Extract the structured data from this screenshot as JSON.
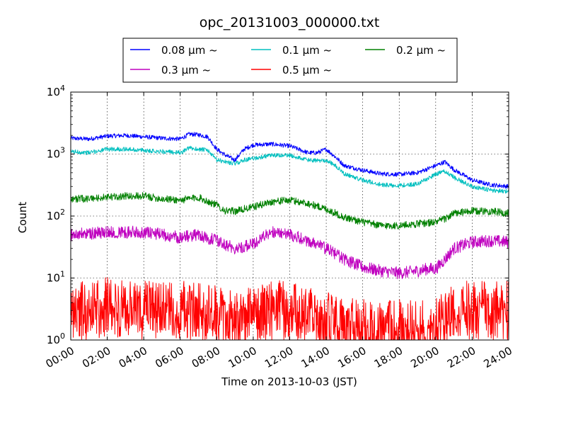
{
  "chart_data": {
    "type": "line",
    "title": "opc_20131003_000000.txt",
    "xlabel": "Time on 2013-10-03 (JST)",
    "ylabel": "Count",
    "x_ticks": [
      "00:00",
      "02:00",
      "04:00",
      "06:00",
      "08:00",
      "10:00",
      "12:00",
      "14:00",
      "16:00",
      "18:00",
      "20:00",
      "22:00",
      "24:00"
    ],
    "y_scale": "log",
    "ylim": [
      1,
      10000
    ],
    "xlim_hours": [
      0,
      24
    ],
    "y_tick_exponents": [
      "0",
      "1",
      "2",
      "3",
      "4"
    ],
    "y_tick_base": "10",
    "grid": true,
    "legend_position": "top-center",
    "series": [
      {
        "name": "0.08 μm ~",
        "color": "#0000ff",
        "x": [
          0,
          1,
          2,
          3,
          4,
          5,
          6,
          6.5,
          7,
          7.5,
          8,
          8.5,
          9,
          9.5,
          10,
          11,
          12,
          13,
          13.5,
          14,
          14.5,
          15,
          16,
          17,
          18,
          19,
          20,
          20.5,
          21,
          22,
          23,
          24
        ],
        "values": [
          1800,
          1750,
          1950,
          2000,
          1900,
          1800,
          1750,
          2100,
          2050,
          1900,
          1200,
          950,
          800,
          1200,
          1400,
          1450,
          1350,
          1050,
          1050,
          1200,
          900,
          650,
          550,
          480,
          470,
          500,
          650,
          750,
          560,
          380,
          320,
          300
        ]
      },
      {
        "name": "0.1 μm ~",
        "color": "#00bfbf",
        "x": [
          0,
          1,
          2,
          3,
          4,
          5,
          6,
          6.5,
          7,
          7.5,
          8,
          8.5,
          9,
          9.5,
          10,
          11,
          12,
          13,
          13.5,
          14,
          14.5,
          15,
          16,
          17,
          18,
          19,
          20,
          20.5,
          21,
          22,
          23,
          24
        ],
        "values": [
          1100,
          1050,
          1200,
          1200,
          1150,
          1100,
          1050,
          1250,
          1200,
          1150,
          800,
          750,
          700,
          800,
          850,
          950,
          950,
          800,
          780,
          800,
          650,
          480,
          380,
          320,
          310,
          330,
          470,
          530,
          420,
          300,
          260,
          250
        ]
      },
      {
        "name": "0.2 μm ~",
        "color": "#008000",
        "x": [
          0,
          1,
          2,
          3,
          4,
          5,
          6,
          7,
          8,
          8.5,
          9,
          10,
          11,
          12,
          13,
          14,
          15,
          16,
          17,
          18,
          19,
          20,
          20.5,
          21,
          22,
          23,
          24
        ],
        "values": [
          190,
          190,
          200,
          210,
          210,
          190,
          180,
          200,
          150,
          120,
          120,
          140,
          170,
          180,
          160,
          130,
          95,
          80,
          70,
          70,
          75,
          80,
          90,
          110,
          120,
          120,
          110
        ]
      },
      {
        "name": "0.3 μm ~",
        "color": "#bf00bf",
        "x": [
          0,
          1,
          2,
          3,
          4,
          5,
          6,
          7,
          8,
          9,
          10,
          10.5,
          11,
          12,
          13,
          14,
          14.5,
          15,
          16,
          17,
          18,
          19,
          19.5,
          20,
          20.5,
          21,
          22,
          23,
          24
        ],
        "values": [
          50,
          52,
          55,
          55,
          55,
          50,
          45,
          50,
          40,
          30,
          35,
          45,
          55,
          50,
          40,
          30,
          25,
          20,
          15,
          13,
          12,
          13,
          14,
          14,
          20,
          30,
          38,
          40,
          38
        ]
      },
      {
        "name": "0.5 μm ~",
        "color": "#ff0000",
        "x": [
          0,
          1,
          2,
          3,
          4,
          5,
          6,
          7,
          8,
          9,
          10,
          11,
          11.5,
          12,
          13,
          14,
          15,
          16,
          17,
          18,
          19,
          20,
          20.5,
          21,
          22,
          23,
          24
        ],
        "values": [
          3,
          3,
          3.5,
          3,
          3,
          3,
          3,
          3,
          2.5,
          2,
          2.5,
          3,
          3,
          3,
          2.5,
          2,
          1.6,
          1.5,
          1.5,
          1.5,
          1.5,
          1.6,
          2,
          3,
          3,
          3,
          3
        ]
      }
    ]
  }
}
